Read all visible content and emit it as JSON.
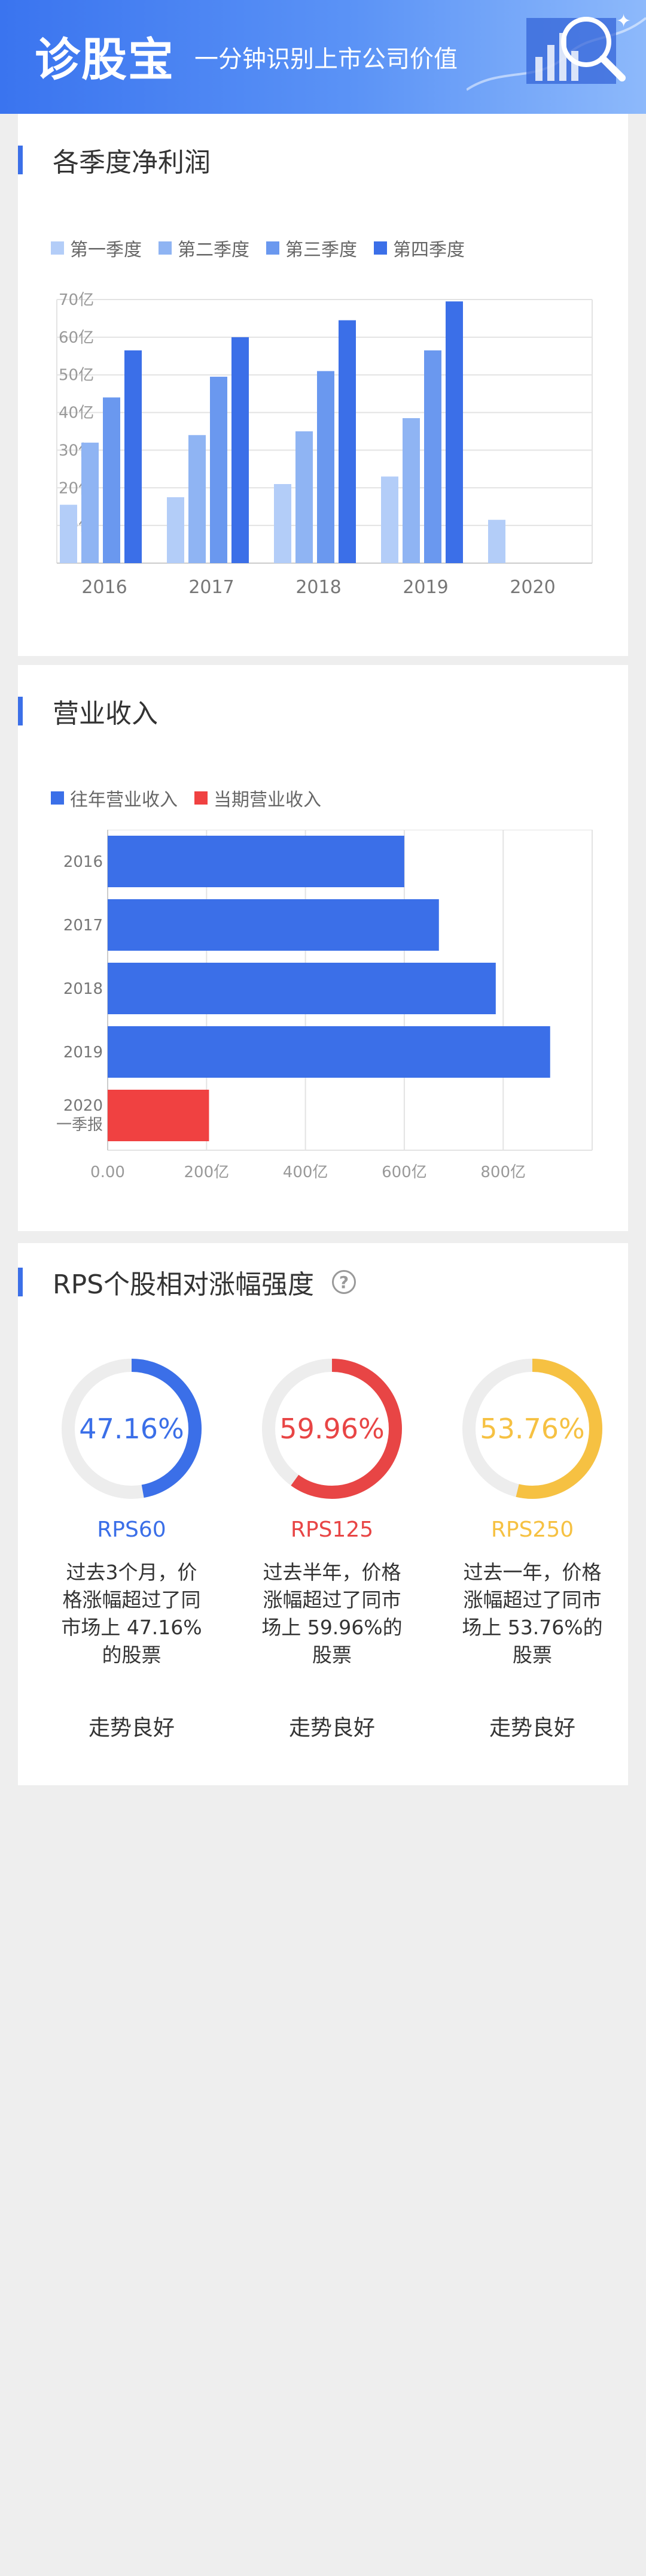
{
  "header": {
    "logo": "诊股宝",
    "slogan": "一分钟识别上市公司价值"
  },
  "profit_section": {
    "title": "各季度净利润",
    "legend": [
      "第一季度",
      "第二季度",
      "第三季度",
      "第四季度"
    ]
  },
  "revenue_section": {
    "title": "营业收入",
    "legend": [
      "往年营业收入",
      "当期营业收入"
    ]
  },
  "rps_section": {
    "title": "RPS个股相对涨幅强度",
    "help_icon": "question-circle-icon",
    "items": [
      {
        "percent": "47.16%",
        "value": 47.16,
        "label": "RPS60",
        "color": "#3b6fe8",
        "desc": "过去3个月，价格涨幅超过了同市场上 47.16% 的股票",
        "trend": "走势良好"
      },
      {
        "percent": "59.96%",
        "value": 59.96,
        "label": "RPS125",
        "color": "#e84545",
        "desc": "过去半年，价格涨幅超过了同市场上 59.96%的股票",
        "trend": "走势良好"
      },
      {
        "percent": "53.76%",
        "value": 53.76,
        "label": "RPS250",
        "color": "#f6c142",
        "desc": "过去一年，价格涨幅超过了同市场上 53.76%的股票",
        "trend": "走势良好"
      }
    ]
  },
  "colors": {
    "accent": "#3b6fe8",
    "q1": "#b3cdf8",
    "q2": "#8fb4f3",
    "q3": "#6a98ef",
    "q4": "#3b6fe8",
    "current": "#f04141"
  },
  "chart_data": [
    {
      "type": "bar",
      "title": "各季度净利润",
      "categories": [
        "2016",
        "2017",
        "2018",
        "2019",
        "2020"
      ],
      "series": [
        {
          "name": "第一季度",
          "values": [
            15.5,
            17.5,
            21,
            23,
            11.5
          ]
        },
        {
          "name": "第二季度",
          "values": [
            32,
            34,
            35,
            38.5,
            null
          ]
        },
        {
          "name": "第三季度",
          "values": [
            44,
            49.5,
            51,
            56.5,
            null
          ]
        },
        {
          "name": "第四季度",
          "values": [
            56.5,
            60,
            64.5,
            69.5,
            null
          ]
        }
      ],
      "yticks": [
        "10亿",
        "20亿",
        "30亿",
        "40亿",
        "50亿",
        "60亿",
        "70亿"
      ],
      "ylim": [
        0,
        70
      ],
      "grid": true,
      "legend": "top-left"
    },
    {
      "type": "bar",
      "orientation": "horizontal",
      "title": "营业收入",
      "categories": [
        "2016",
        "2017",
        "2018",
        "2019",
        "2020\n一季报"
      ],
      "series": [
        {
          "name": "往年营业收入",
          "values": [
            600,
            670,
            785,
            895,
            null
          ]
        },
        {
          "name": "当期营业收入",
          "values": [
            null,
            null,
            null,
            null,
            205
          ]
        }
      ],
      "xticks": [
        "0.00",
        "200亿",
        "400亿",
        "600亿",
        "800亿"
      ],
      "xlim": [
        0,
        980
      ],
      "grid": true,
      "legend": "top-left"
    }
  ]
}
